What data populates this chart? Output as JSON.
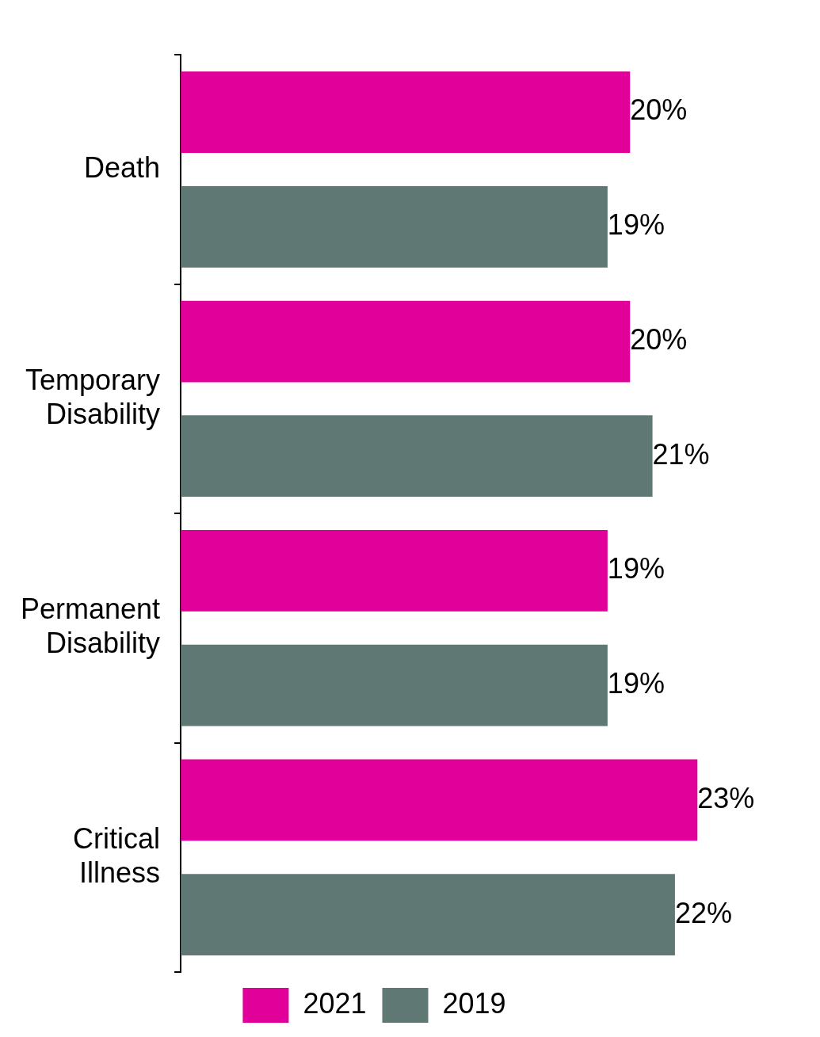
{
  "chart_data": {
    "type": "bar",
    "orientation": "horizontal",
    "categories": [
      "Death",
      "Temporary Disability",
      "Permanent Disability",
      "Critical Illness"
    ],
    "series": [
      {
        "name": "2021",
        "color": "#e2009a",
        "values": [
          20,
          20,
          19,
          23
        ],
        "value_labels": [
          "20%",
          "20%",
          "19%",
          "23%"
        ]
      },
      {
        "name": "2019",
        "color": "#607874",
        "values": [
          19,
          21,
          19,
          22
        ],
        "value_labels": [
          "19%",
          "21%",
          "19%",
          "22%"
        ]
      }
    ],
    "legend": "bottom",
    "grid": false,
    "tick_labels": "y"
  }
}
